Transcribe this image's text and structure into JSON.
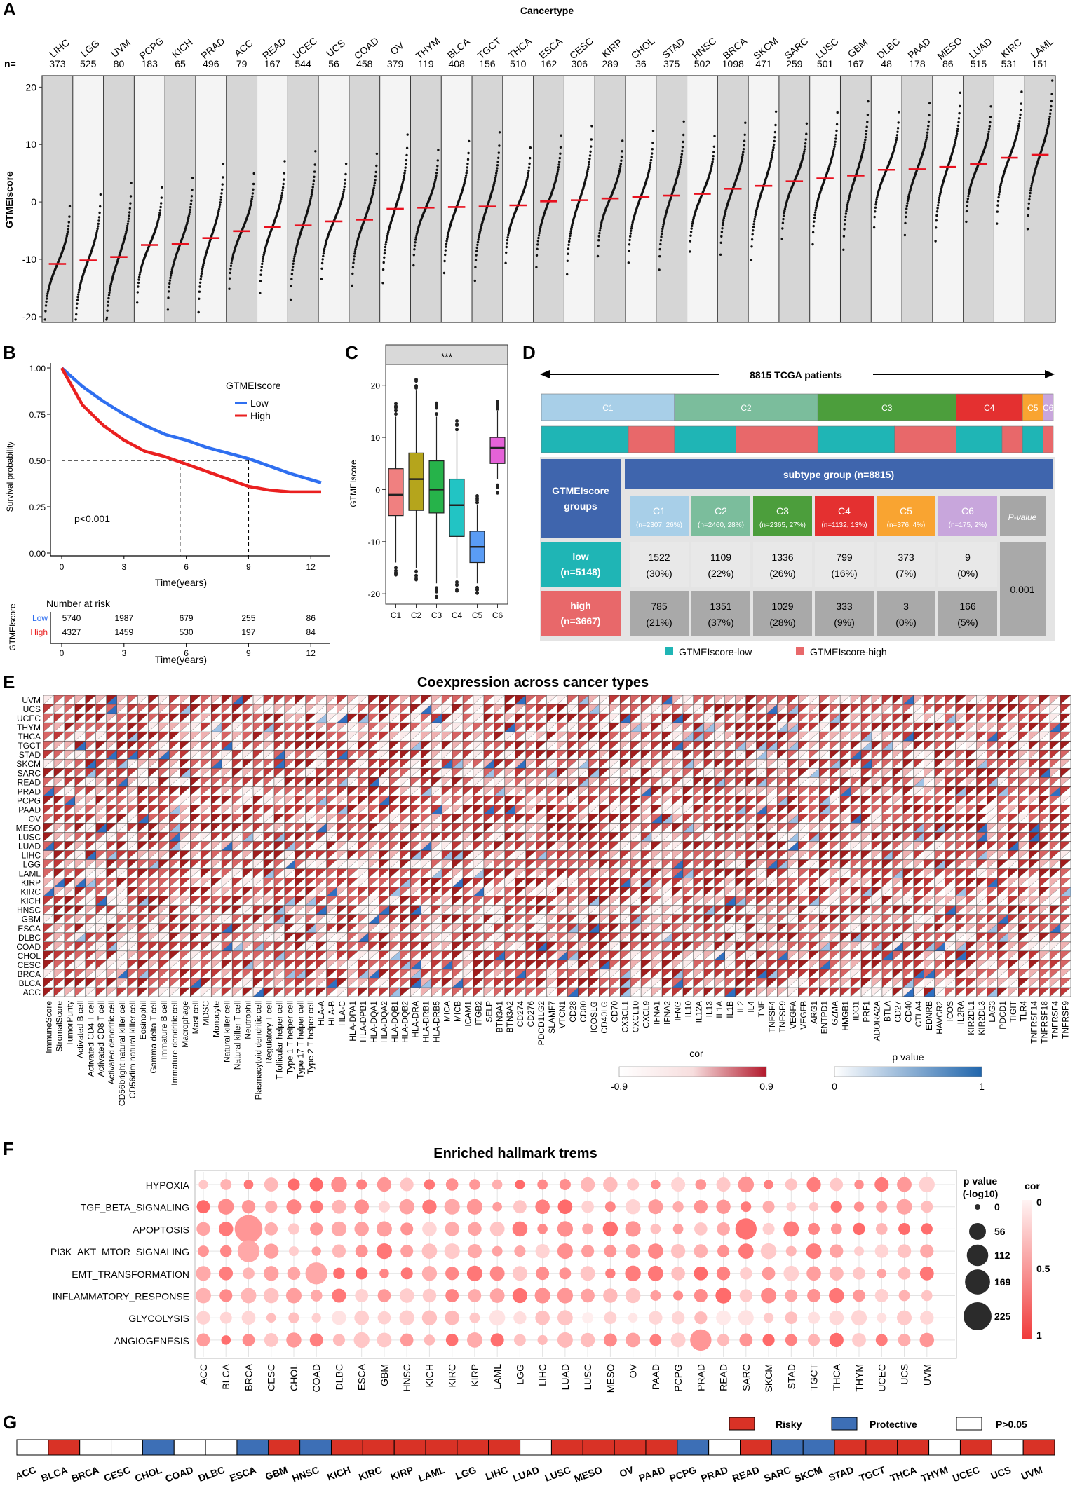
{
  "panels": {
    "A": {
      "label": "A",
      "title": "Cancertype",
      "n_prefix": "n=",
      "ylabel": "GTMEIscore",
      "yticks": [
        -20,
        -10,
        0,
        10,
        20
      ],
      "ylim": [
        -21,
        22
      ],
      "cancers": [
        "LIHC",
        "LGG",
        "UVM",
        "PCPG",
        "KICH",
        "PRAD",
        "ACC",
        "READ",
        "UCEC",
        "UCS",
        "COAD",
        "OV",
        "THYM",
        "BLCA",
        "TGCT",
        "THCA",
        "ESCA",
        "CESC",
        "KIRP",
        "CHOL",
        "STAD",
        "HNSC",
        "BRCA",
        "SKCM",
        "SARC",
        "LUSC",
        "GBM",
        "DLBC",
        "PAAD",
        "MESO",
        "LUAD",
        "KIRC",
        "LAML"
      ],
      "n": [
        "373",
        "525",
        "80",
        "183",
        "65",
        "496",
        "79",
        "167",
        "544",
        "56",
        "458",
        "379",
        "119",
        "408",
        "156",
        "510",
        "162",
        "306",
        "289",
        "36",
        "375",
        "502",
        "1098",
        "471",
        "259",
        "501",
        "167",
        "48",
        "178",
        "86",
        "515",
        "531",
        "151"
      ],
      "medians": [
        -10.8,
        -10.2,
        -9.6,
        -7.5,
        -7.3,
        -6.3,
        -5.1,
        -4.4,
        -4.1,
        -3.4,
        -3.1,
        -1.2,
        -1.0,
        -0.9,
        -0.8,
        -0.6,
        0.1,
        0.3,
        0.6,
        0.9,
        1.1,
        1.4,
        2.3,
        2.8,
        3.6,
        4.1,
        4.6,
        5.6,
        5.7,
        6.1,
        6.6,
        7.7,
        8.2
      ]
    },
    "B": {
      "label": "B",
      "legend_title": "GTMEIscore",
      "legend": [
        "Low",
        "High"
      ],
      "pvalue": "p<0.001",
      "xlabel": "Time(years)",
      "ylabel": "Survival probability",
      "yticks": [
        "0.00",
        "0.25",
        "0.50",
        "0.75",
        "1.00"
      ],
      "xticks": [
        "0",
        "3",
        "6",
        "9",
        "12"
      ],
      "risk_title": "Number at risk",
      "risk_ylabel": "GTMEIscore",
      "risk_rows": [
        {
          "name": "Low",
          "values": [
            "5740",
            "1987",
            "679",
            "255",
            "86"
          ]
        },
        {
          "name": "High",
          "values": [
            "4327",
            "1459",
            "530",
            "197",
            "84"
          ]
        }
      ],
      "chart_data": {
        "type": "line",
        "series": [
          {
            "name": "Low",
            "x": [
              0,
              1,
              2,
              3,
              4,
              5,
              6,
              7,
              8,
              9,
              10,
              11,
              12.5
            ],
            "values": [
              1.0,
              0.9,
              0.82,
              0.75,
              0.69,
              0.64,
              0.61,
              0.57,
              0.54,
              0.51,
              0.47,
              0.43,
              0.38
            ]
          },
          {
            "name": "High",
            "x": [
              0,
              1,
              2,
              3,
              4,
              5,
              6,
              7,
              8,
              9,
              10,
              11,
              12.5
            ],
            "values": [
              1.0,
              0.8,
              0.69,
              0.61,
              0.55,
              0.52,
              0.48,
              0.44,
              0.4,
              0.36,
              0.34,
              0.33,
              0.33
            ]
          }
        ],
        "xlim": [
          0,
          12.5
        ],
        "ylim": [
          0,
          1
        ]
      }
    },
    "C": {
      "label": "C",
      "strip": "***",
      "ylabel": "GTMEIscore",
      "yticks": [
        -20,
        -10,
        0,
        10,
        20
      ],
      "chart_data": {
        "type": "box",
        "categories": [
          "C1",
          "C2",
          "C3",
          "C4",
          "C5",
          "C6"
        ],
        "colors": [
          "#f08080",
          "#b5a51c",
          "#26b34a",
          "#22c4c4",
          "#5a9cf5",
          "#e562d8"
        ],
        "boxes": [
          {
            "q1": -5,
            "median": -1,
            "q3": 4,
            "lo": -14,
            "hi": 14
          },
          {
            "q1": -4,
            "median": 2,
            "q3": 7,
            "lo": -15,
            "hi": 19
          },
          {
            "q1": -4.5,
            "median": 0,
            "q3": 5.5,
            "lo": -18,
            "hi": 14
          },
          {
            "q1": -9,
            "median": -3,
            "q3": 2,
            "lo": -17,
            "hi": 11
          },
          {
            "q1": -14,
            "median": -11,
            "q3": -8,
            "lo": -18,
            "hi": -3
          },
          {
            "q1": 5,
            "median": 8,
            "q3": 10,
            "lo": 2,
            "hi": 15
          }
        ],
        "ylim": [
          -22,
          24
        ]
      }
    },
    "D": {
      "label": "D",
      "title": "8815 TCGA patients",
      "subtype_bar": [
        {
          "name": "C1",
          "frac": 0.26,
          "color": "#a8cfe8"
        },
        {
          "name": "C2",
          "frac": 0.28,
          "color": "#7bbd9c"
        },
        {
          "name": "C3",
          "frac": 0.27,
          "color": "#4c9e3c"
        },
        {
          "name": "C4",
          "frac": 0.13,
          "color": "#e43030"
        },
        {
          "name": "C5",
          "frac": 0.04,
          "color": "#f9a431"
        },
        {
          "name": "C6",
          "frac": 0.02,
          "color": "#c8a6dc"
        }
      ],
      "group_bar": [
        {
          "g": "low",
          "frac": 0.17
        },
        {
          "g": "high",
          "frac": 0.09
        },
        {
          "g": "low",
          "frac": 0.12
        },
        {
          "g": "high",
          "frac": 0.16
        },
        {
          "g": "low",
          "frac": 0.15
        },
        {
          "g": "high",
          "frac": 0.12
        },
        {
          "g": "low",
          "frac": 0.09
        },
        {
          "g": "high",
          "frac": 0.04
        },
        {
          "g": "low",
          "frac": 0.04
        },
        {
          "g": "high",
          "frac": 0.02
        }
      ],
      "table_header": "subtype group (n=8815)",
      "group_header": "GTMEIscore groups",
      "pvalue_header": "P-value",
      "pvalue": "0.001",
      "subtypes": [
        {
          "name": "C1",
          "n": "(n=2307, 26%)",
          "color": "#a8cfe8"
        },
        {
          "name": "C2",
          "n": "(n=2460, 28%)",
          "color": "#7bbd9c"
        },
        {
          "name": "C3",
          "n": "(n=2365, 27%)",
          "color": "#4c9e3c"
        },
        {
          "name": "C4",
          "n": "(n=1132, 13%)",
          "color": "#e43030"
        },
        {
          "name": "C5",
          "n": "(n=376, 4%)",
          "color": "#f9a431"
        },
        {
          "name": "C6",
          "n": "(n=175, 2%)",
          "color": "#c8a6dc"
        }
      ],
      "rows": [
        {
          "name": "low",
          "n": "(n=5148)",
          "color": "#1fb5b5",
          "counts": [
            "1522",
            "1109",
            "1336",
            "799",
            "373",
            "9"
          ],
          "pct": [
            "(30%)",
            "(22%)",
            "(26%)",
            "(16%)",
            "(7%)",
            "(0%)"
          ]
        },
        {
          "name": "high",
          "n": "(n=3667)",
          "color": "#e8686a",
          "counts": [
            "785",
            "1351",
            "1029",
            "333",
            "3",
            "166"
          ],
          "pct": [
            "(21%)",
            "(37%)",
            "(28%)",
            "(9%)",
            "(0%)",
            "(5%)"
          ]
        }
      ],
      "legend": [
        "GTMEIscore-low",
        "GTMEIscore-high"
      ]
    },
    "E": {
      "label": "E",
      "title": "Coexpression across cancer types",
      "rows": [
        "UVM",
        "UCS",
        "UCEC",
        "THYM",
        "THCA",
        "TGCT",
        "STAD",
        "SKCM",
        "SARC",
        "READ",
        "PRAD",
        "PCPG",
        "PAAD",
        "OV",
        "MESO",
        "LUSC",
        "LUAD",
        "LIHC",
        "LGG",
        "LAML",
        "KIRP",
        "KIRC",
        "KICH",
        "HNSC",
        "GBM",
        "ESCA",
        "DLBC",
        "COAD",
        "CHOL",
        "CESC",
        "BRCA",
        "BLCA",
        "ACC"
      ],
      "cols": [
        "ImmuneScore",
        "StromalScore",
        "TumorPurity",
        "Activated B cell",
        "Activated CD4 T cell",
        "Activated CD8 T cell",
        "Activated dendritic cell",
        "CD56bright natural killer cell",
        "CD56dim natural killer cell",
        "Eosinophil",
        "Gamma delta T cell",
        "Immature B cell",
        "Immature dendritic cell",
        "Macrophage",
        "Mast cell",
        "MDSC",
        "Monocyte",
        "Natural killer cell",
        "Natural killer T cell",
        "Neutrophil",
        "Plasmacytoid dendritic cell",
        "Regulatory T cell",
        "T follicular helper cell",
        "Type 1 T helper cell",
        "Type 17 T helper cell",
        "Type 2 T helper cell",
        "HLA-A",
        "HLA-B",
        "HLA-C",
        "HLA-DPA1",
        "HLA-DPB1",
        "HLA-DQA1",
        "HLA-DQA2",
        "HLA-DQB1",
        "HLA-DQB2",
        "HLA-DRA",
        "HLA-DRB1",
        "HLA-DRB5",
        "MICA",
        "MICB",
        "ICAM1",
        "ITGB2",
        "SELP",
        "BTN3A1",
        "BTN3A2",
        "CD274",
        "CD276",
        "PDCD1LG2",
        "SLAMF7",
        "VTCN1",
        "CD28",
        "CD80",
        "ICOSLG",
        "CD40LG",
        "CD70",
        "CX3CL1",
        "CXCL10",
        "CXCL9",
        "IFNA1",
        "IFNA2",
        "IFNG",
        "IL10",
        "IL12A",
        "IL13",
        "IL1A",
        "IL1B",
        "IL2",
        "IL4",
        "TNF",
        "TNFSF4",
        "TNFSF9",
        "VEGFA",
        "VEGFB",
        "ARG1",
        "ENTPD1",
        "GZMA",
        "HMGB1",
        "IDO1",
        "PRF1",
        "ADORA2A",
        "BTLA",
        "CD27",
        "CD40",
        "CTLA4",
        "EDNRB",
        "HAVCR2",
        "ICOS",
        "IL2RA",
        "KIR2DL1",
        "KIR2DL3",
        "LAG3",
        "PDCD1",
        "TIGIT",
        "TLR4",
        "TNFRSF14",
        "TNFRSF18",
        "TNFRSF4",
        "TNFRSF9"
      ],
      "cor_legend": {
        "title": "cor",
        "min": "-0.9",
        "max": "0.9"
      },
      "p_legend": {
        "title": "p value",
        "min": "0",
        "max": "1"
      }
    },
    "F": {
      "label": "F",
      "title": "Enriched hallmark trems",
      "terms": [
        "HYPOXIA",
        "TGF_BETA_SIGNALING",
        "APOPTOSIS",
        "PI3K_AKT_MTOR_SIGNALING",
        "EMT_TRANSFORMATION",
        "INFLAMMATORY_RESPONSE",
        "GLYCOLYSIS",
        "ANGIOGENESIS"
      ],
      "cancers": [
        "ACC",
        "BLCA",
        "BRCA",
        "CESC",
        "CHOL",
        "COAD",
        "DLBC",
        "ESCA",
        "GBM",
        "HNSC",
        "KICH",
        "KIRC",
        "KIRP",
        "LAML",
        "LGG",
        "LIHC",
        "LUAD",
        "LUSC",
        "MESO",
        "OV",
        "PAAD",
        "PCPG",
        "PRAD",
        "READ",
        "SARC",
        "SKCM",
        "STAD",
        "TGCT",
        "THCA",
        "THYM",
        "UCEC",
        "UCS",
        "UVM"
      ],
      "size_legend": {
        "title1": "p value",
        "title2": "(-log10)",
        "values": [
          "0",
          "56",
          "112",
          "169",
          "225"
        ]
      },
      "color_legend": {
        "title": "cor",
        "values": [
          "0",
          "0.5",
          "1"
        ]
      },
      "big_points": [
        {
          "term": "APOPTOSIS",
          "cancer": "BRCA",
          "p": 220,
          "cor": 0.5
        },
        {
          "term": "PI3K_AKT_MTOR_SIGNALING",
          "cancer": "BRCA",
          "p": 120,
          "cor": 0.4
        },
        {
          "term": "EMT_TRANSFORMATION",
          "cancer": "COAD",
          "p": 120,
          "cor": 0.4
        },
        {
          "term": "APOPTOSIS",
          "cancer": "SARC",
          "p": 110,
          "cor": 0.7
        },
        {
          "term": "ANGIOGENESIS",
          "cancer": "PRAD",
          "p": 110,
          "cor": 0.5
        }
      ]
    },
    "G": {
      "label": "G",
      "legend": [
        {
          "name": "Risky",
          "color": "#d93226"
        },
        {
          "name": "Protective",
          "color": "#3d6fb6"
        },
        {
          "name": "P>0.05",
          "color": "#ffffff"
        }
      ],
      "cancers": [
        "ACC",
        "BLCA",
        "BRCA",
        "CESC",
        "CHOL",
        "COAD",
        "DLBC",
        "ESCA",
        "GBM",
        "HNSC",
        "KICH",
        "KIRC",
        "KIRP",
        "LAML",
        "LGG",
        "LIHC",
        "LUAD",
        "LUSC",
        "MESO",
        "OV",
        "PAAD",
        "PCPG",
        "PRAD",
        "READ",
        "SARC",
        "SKCM",
        "STAD",
        "TGCT",
        "THCA",
        "THYM",
        "UCEC",
        "UCS",
        "UVM"
      ],
      "status": [
        "ns",
        "risky",
        "ns",
        "ns",
        "protective",
        "ns",
        "ns",
        "protective",
        "risky",
        "protective",
        "risky",
        "risky",
        "risky",
        "risky",
        "risky",
        "risky",
        "ns",
        "risky",
        "risky",
        "risky",
        "risky",
        "protective",
        "ns",
        "risky",
        "protective",
        "protective",
        "risky",
        "risky",
        "risky",
        "ns",
        "risky",
        "ns",
        "risky"
      ]
    }
  },
  "colors": {
    "low": "#1fb5b5",
    "high": "#e8686a",
    "risky": "#d93226",
    "protective": "#3d6fb6",
    "km_low": "#2f6ff0",
    "km_high": "#ea2020"
  }
}
